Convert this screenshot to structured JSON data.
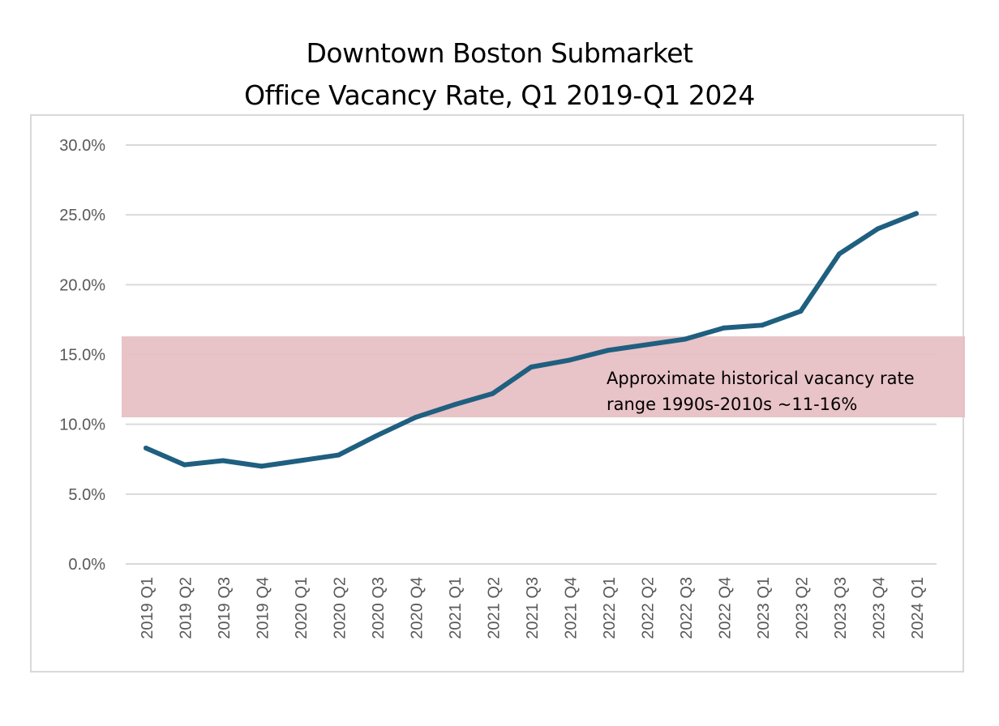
{
  "chart_data": {
    "type": "line",
    "title_line1": "Downtown Boston Submarket",
    "title_line2": "Office Vacancy Rate, Q1 2019-Q1 2024",
    "categories": [
      "2019 Q1",
      "2019 Q2",
      "2019 Q3",
      "2019 Q4",
      "2020 Q1",
      "2020 Q2",
      "2020 Q3",
      "2020 Q4",
      "2021 Q1",
      "2021 Q2",
      "2021 Q3",
      "2021 Q4",
      "2022 Q1",
      "2022 Q2",
      "2022 Q3",
      "2022 Q4",
      "2023 Q1",
      "2023 Q2",
      "2023 Q3",
      "2023 Q4",
      "2024 Q1"
    ],
    "series": [
      {
        "values": [
          8.3,
          7.1,
          7.4,
          7.0,
          7.4,
          7.8,
          9.2,
          10.5,
          11.4,
          12.2,
          14.1,
          14.6,
          15.3,
          15.7,
          16.1,
          16.9,
          17.1,
          18.1,
          22.2,
          24.0,
          25.1
        ],
        "color": "#1f5f80"
      }
    ],
    "y_ticks": [
      0,
      5,
      10,
      15,
      20,
      25,
      30
    ],
    "y_tick_labels": [
      "0.0%",
      "5.0%",
      "10.0%",
      "15.0%",
      "20.0%",
      "25.0%",
      "30.0%"
    ],
    "ylim": [
      0,
      30
    ],
    "grid": true,
    "band": {
      "y_from": 10.5,
      "y_to": 16.3,
      "color": "#e6bcc1",
      "label_line1": "Approximate historical vacancy rate",
      "label_line2": "range 1990s-2010s ~11-16%"
    }
  }
}
